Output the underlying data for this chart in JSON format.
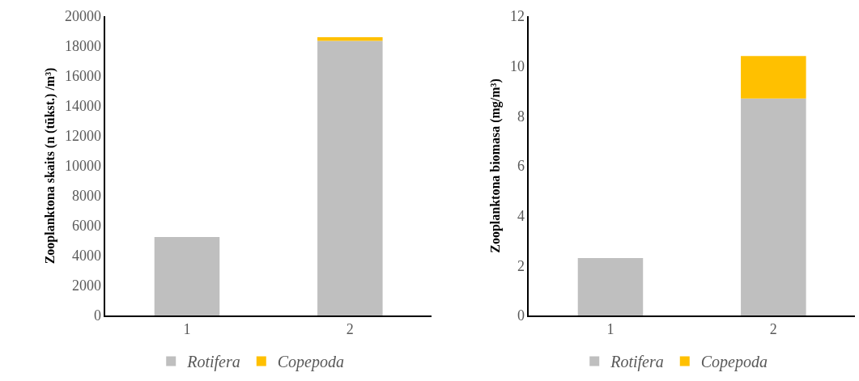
{
  "chart_data": [
    {
      "type": "bar",
      "stacked": true,
      "ylabel": "Zooplanktona skaits (n (tūkst.) /m³)",
      "categories": [
        "1",
        "2"
      ],
      "ylim": [
        0,
        20000
      ],
      "yticks": [
        0,
        2000,
        4000,
        6000,
        8000,
        10000,
        12000,
        14000,
        16000,
        18000,
        20000
      ],
      "legend": "bottom",
      "series": [
        {
          "name": "Rotifera",
          "color": "#bfbfbf",
          "values": [
            5250,
            18350
          ]
        },
        {
          "name": "Copepoda",
          "color": "#ffc000",
          "values": [
            0,
            250
          ]
        }
      ]
    },
    {
      "type": "bar",
      "stacked": true,
      "ylabel": "Zooplanktona biomasa (mg/m³)",
      "categories": [
        "1",
        "2"
      ],
      "ylim": [
        0,
        12
      ],
      "yticks": [
        0,
        2,
        4,
        6,
        8,
        10,
        12
      ],
      "legend": "bottom",
      "series": [
        {
          "name": "Rotifera",
          "color": "#bfbfbf",
          "values": [
            2.3,
            8.7
          ]
        },
        {
          "name": "Copepoda",
          "color": "#ffc000",
          "values": [
            0,
            1.7
          ]
        }
      ]
    }
  ]
}
